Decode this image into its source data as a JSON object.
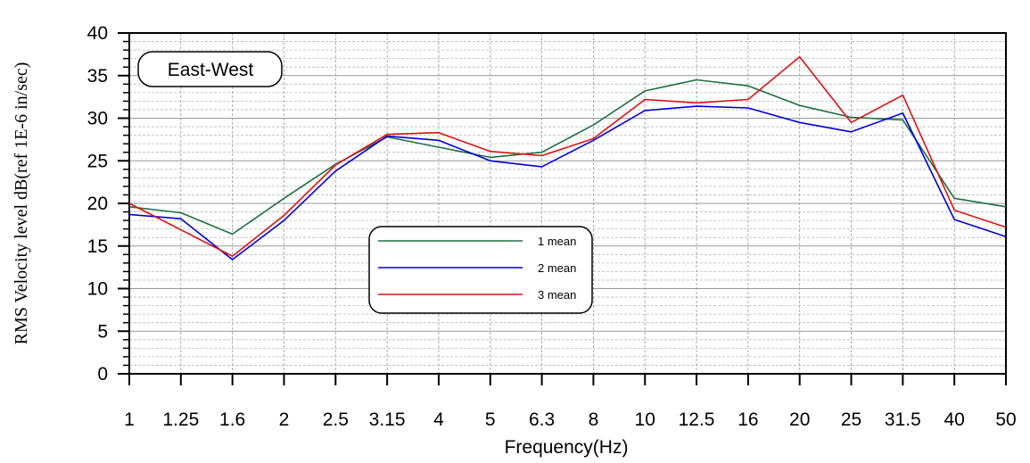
{
  "chart_data": {
    "type": "line",
    "tag": "East-West",
    "xlabel": "Frequency(Hz)",
    "ylabel": "RMS Velocity level dB(ref 1E-6 in/sec)",
    "categories": [
      "1",
      "1.25",
      "1.6",
      "2",
      "2.5",
      "3.15",
      "4",
      "5",
      "6.3",
      "8",
      "10",
      "12.5",
      "16",
      "20",
      "25",
      "31.5",
      "40",
      "50"
    ],
    "ylim": [
      0,
      40
    ],
    "yticks": [
      0,
      5,
      10,
      15,
      20,
      25,
      30,
      35,
      40
    ],
    "grid": true,
    "legend_position": "center-bottom",
    "series": [
      {
        "name": "1 mean",
        "color": "#1e7040",
        "values": [
          19.6,
          18.9,
          16.4,
          20.6,
          24.6,
          27.8,
          26.6,
          25.4,
          26.0,
          29.2,
          33.2,
          34.5,
          33.8,
          31.5,
          30.1,
          29.8,
          20.6,
          19.6
        ]
      },
      {
        "name": "2 mean",
        "color": "#0000dd",
        "values": [
          18.7,
          18.2,
          13.4,
          18.0,
          23.8,
          27.9,
          27.4,
          25.0,
          24.3,
          27.4,
          30.9,
          31.4,
          31.2,
          29.5,
          28.4,
          30.6,
          18.1,
          16.1
        ]
      },
      {
        "name": "3 mean",
        "color": "#e01010",
        "values": [
          20.0,
          16.9,
          13.8,
          18.6,
          24.5,
          28.1,
          28.3,
          26.1,
          25.6,
          27.6,
          32.2,
          31.8,
          32.2,
          37.2,
          29.5,
          32.7,
          19.2,
          17.2
        ]
      }
    ]
  }
}
